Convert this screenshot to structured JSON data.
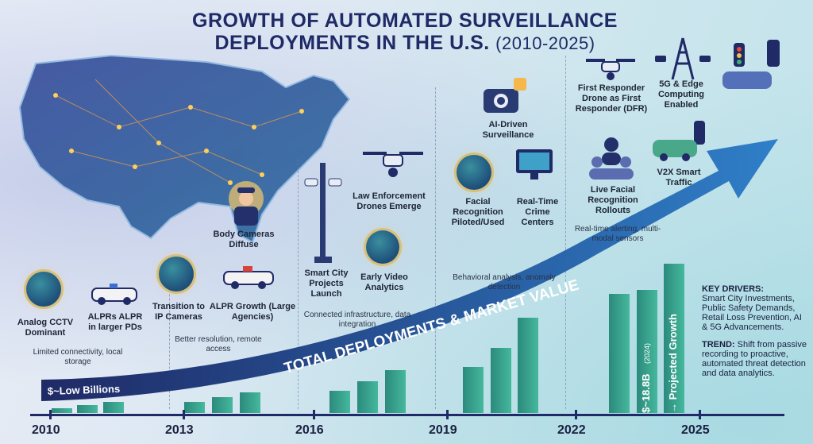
{
  "title": {
    "line1": "GROWTH OF AUTOMATED SURVEILLANCE",
    "line2": "DEPLOYMENTS IN THE U.S.",
    "years": "(2010-2025)"
  },
  "arrow_label": "TOTAL DEPLOYMENTS & MARKET VALUE",
  "start_value": "$~Low Billions",
  "value_2024": "$~18.8B",
  "value_2024_note": "(2024)",
  "projected": "→ Projected Growth",
  "timeline": {
    "years": [
      "2010",
      "2013",
      "2016",
      "2019",
      "2022",
      "2025"
    ]
  },
  "milestones": {
    "analog_cctv": "Analog CCTV Dominant",
    "alprs": "ALPRs ALPR in larger PDs",
    "transition_ip": "Transition to IP Cameras",
    "alpr_growth": "ALPR Growth (Large Agencies)",
    "body_cams": "Body Cameras Diffuse",
    "smart_city": "Smart City Projects Launch",
    "drones": "Law Enforcement Drones Emerge",
    "video_analytics": "Early Video Analytics",
    "ai_surv": "AI-Driven Surveillance",
    "facial": "Facial Recognition Piloted/Used",
    "rtcc": "Real-Time Crime Centers",
    "dfr": "First Responder Drone as First Responder (DFR)",
    "live_fr": "Live Facial Recognition Rollouts",
    "5g": "5G & Edge Computing Enabled",
    "v2x": "V2X Smart Traffic"
  },
  "notes": {
    "limited": "Limited connectivity, local storage",
    "better": "Better resolution, remote access",
    "connected": "Connected infrastructure, data integration",
    "behavioral": "Behavioral analysis, anomaly detection",
    "realtime": "Real-time alerting, multi-modal sensors"
  },
  "key": {
    "drivers_title": "KEY DRIVERS:",
    "drivers_text": "Smart City Investments, Public Safety Demands, Retail Loss Prevention, AI & 5G Advancements.",
    "trend_title": "TREND:",
    "trend_text": "Shift from passive recording to proactive, automated threat detection and data analytics."
  },
  "bars": [
    6,
    10,
    14,
    14,
    20,
    26,
    28,
    40,
    54,
    58,
    82,
    120,
    150,
    155,
    188
  ]
}
